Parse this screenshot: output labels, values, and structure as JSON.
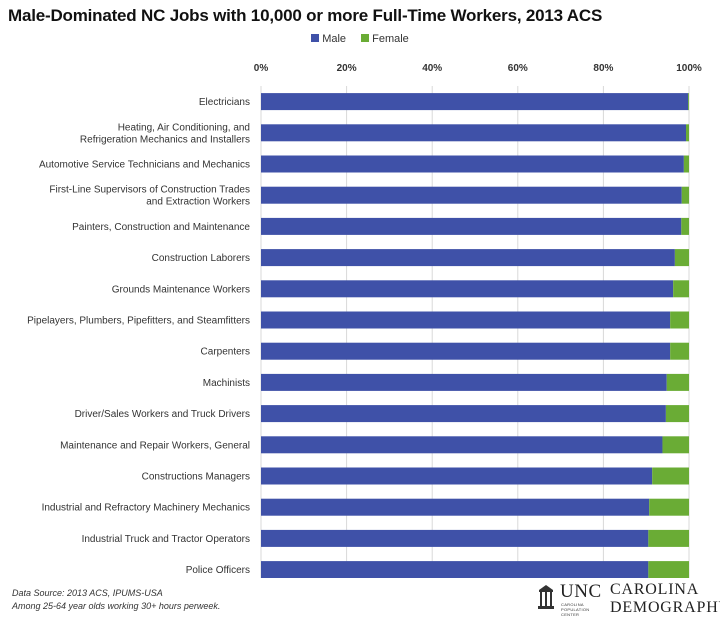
{
  "chart_data": {
    "type": "bar",
    "orientation": "horizontal",
    "stacked": true,
    "title": "Male-Dominated NC Jobs with 10,000 or more Full-Time Workers, 2013 ACS",
    "legend_position": "top",
    "grid": true,
    "xlim": [
      0,
      100
    ],
    "x_ticks": [
      "0%",
      "20%",
      "40%",
      "60%",
      "80%",
      "100%"
    ],
    "categories": [
      "Electricians",
      "Heating, Air Conditioning, and Refrigeration Mechanics and Installers",
      "Automotive Service Technicians and Mechanics",
      "First-Line Supervisors of Construction Trades and Extraction Workers",
      "Painters, Construction and Maintenance",
      "Construction Laborers",
      "Grounds Maintenance Workers",
      "Pipelayers, Plumbers, Pipefitters, and Steamfitters",
      "Carpenters",
      "Machinists",
      "Driver/Sales Workers and Truck Drivers",
      "Maintenance and Repair Workers, General",
      "Constructions Managers",
      "Industrial and Refractory Machinery Mechanics",
      "Industrial Truck and Tractor Operators",
      "Police Officers"
    ],
    "category_lines": [
      [
        "Electricians"
      ],
      [
        "Heating, Air Conditioning, and",
        "Refrigeration Mechanics and Installers"
      ],
      [
        "Automotive Service Technicians and Mechanics"
      ],
      [
        "First-Line Supervisors of Construction Trades",
        "and Extraction Workers"
      ],
      [
        "Painters, Construction and Maintenance"
      ],
      [
        "Construction Laborers"
      ],
      [
        "Grounds Maintenance Workers"
      ],
      [
        "Pipelayers, Plumbers, Pipefitters, and Steamfitters"
      ],
      [
        "Carpenters"
      ],
      [
        "Machinists"
      ],
      [
        "Driver/Sales Workers and Truck Drivers"
      ],
      [
        "Maintenance and Repair Workers, General"
      ],
      [
        "Constructions Managers"
      ],
      [
        "Industrial and Refractory Machinery Mechanics"
      ],
      [
        "Industrial Truck and Tractor Operators"
      ],
      [
        "Police Officers"
      ]
    ],
    "series": [
      {
        "name": "Male",
        "color": "#3f51a8",
        "values": [
          99.8,
          99.3,
          98.8,
          98.3,
          98.2,
          96.7,
          96.3,
          95.6,
          95.6,
          94.8,
          94.6,
          93.8,
          91.4,
          90.7,
          90.5,
          90.5
        ]
      },
      {
        "name": "Female",
        "color": "#6aac35",
        "values": [
          0.2,
          0.7,
          1.2,
          1.7,
          1.8,
          3.3,
          3.7,
          4.4,
          4.4,
          5.2,
          5.4,
          6.2,
          8.6,
          9.3,
          9.5,
          9.5
        ]
      }
    ]
  },
  "footer": {
    "source_line": "Data Source: 2013 ACS, IPUMS-USA",
    "note_line": "Among 25-64 year olds working 30+ hours perweek."
  },
  "logo": {
    "unc": "UNC",
    "sub_lines": [
      "CAROLINA",
      "POPULATION",
      "CENTER"
    ],
    "word_line1": "CAROLINA",
    "word_line2": "DEMOGRAPHY"
  }
}
